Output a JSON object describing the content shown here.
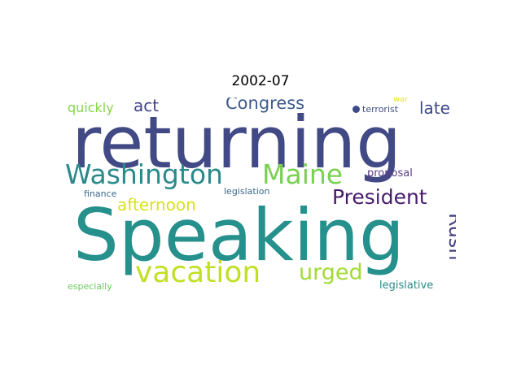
{
  "title": "2002-07",
  "words": {
    "returning": {
      "text": "returning",
      "color": "#424a86"
    },
    "speaking": {
      "text": "Speaking",
      "color": "#25908c"
    },
    "washington": {
      "text": "Washington",
      "color": "#2a8a8a"
    },
    "maine": {
      "text": "Maine",
      "color": "#7ad051"
    },
    "president": {
      "text": "President",
      "color": "#481a6c"
    },
    "vacation": {
      "text": "vacation",
      "color": "#c2df23"
    },
    "urged": {
      "text": "urged",
      "color": "#a2da37"
    },
    "rush": {
      "text": "Rush",
      "color": "#423f85"
    },
    "congress": {
      "text": "Congress",
      "color": "#3e5a8c"
    },
    "afternoon": {
      "text": "afternoon",
      "color": "#d8e219"
    },
    "act": {
      "text": "act",
      "color": "#414487"
    },
    "late": {
      "text": "late",
      "color": "#3e4989"
    },
    "quickly": {
      "text": "quickly",
      "color": "#86d549"
    },
    "proposal": {
      "text": "proposal",
      "color": "#5a3c87"
    },
    "legislative": {
      "text": "legislative",
      "color": "#2a8a8a"
    },
    "terrorist": {
      "text": "terrorist",
      "color": "#3f4d8a"
    },
    "war": {
      "text": "war",
      "color": "#e5e419"
    },
    "legislation": {
      "text": "legislation",
      "color": "#3a6a8c"
    },
    "finance": {
      "text": "finance",
      "color": "#3a6a8c"
    },
    "especially": {
      "text": "especially",
      "color": "#6ccd5a"
    }
  },
  "dot_color": "#3e4a89"
}
